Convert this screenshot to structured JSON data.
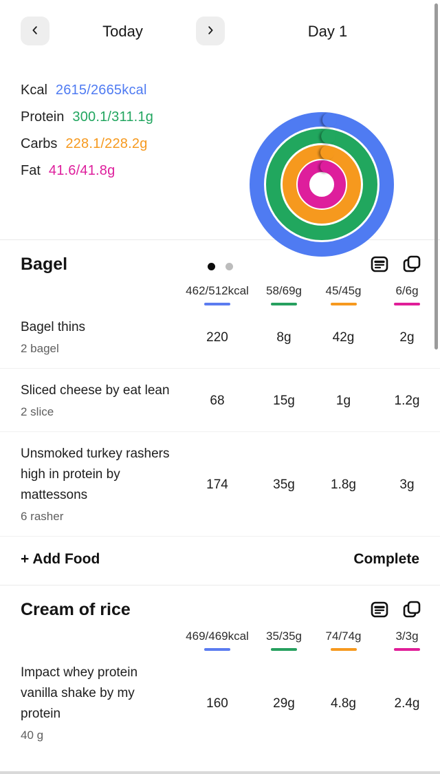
{
  "header": {
    "date_label": "Today",
    "day_label": "Day 1",
    "back_icon": "chevron-left",
    "forward_icon": "chevron-right"
  },
  "summary": {
    "macros": [
      {
        "label": "Kcal",
        "value": "2615/2665kcal",
        "color": "#4f7bf2"
      },
      {
        "label": "Protein",
        "value": "300.1/311.1g",
        "color": "#21a55f"
      },
      {
        "label": "Carbs",
        "value": "228.1/228.2g",
        "color": "#f6991e"
      },
      {
        "label": "Fat",
        "value": "41.6/41.8g",
        "color": "#de1e9c"
      }
    ],
    "rings": [
      {
        "name": "calories",
        "consumed": 2615,
        "target": 2665,
        "color": "#4f7bf2"
      },
      {
        "name": "protein",
        "consumed": 300.1,
        "target": 311.1,
        "color": "#21a75e"
      },
      {
        "name": "carbs",
        "consumed": 228.1,
        "target": 228.2,
        "color": "#f6991e"
      },
      {
        "name": "fat",
        "consumed": 41.6,
        "target": 41.8,
        "color": "#de1e9c"
      }
    ],
    "page_dots": {
      "count": 2,
      "active_index": 0
    }
  },
  "macro_colors": {
    "kcal": "#5b7cf0",
    "protein": "#27a05f",
    "carbs": "#f6991f",
    "fat": "#e01e98"
  },
  "meals": [
    {
      "title": "Bagel",
      "totals": {
        "kcal": "462/512kcal",
        "protein": "58/69g",
        "carbs": "45/45g",
        "fat": "6/6g"
      },
      "foods": [
        {
          "name": "Bagel thins",
          "serving": "2 bagel",
          "kcal": "220",
          "protein": "8g",
          "carbs": "42g",
          "fat": "2g"
        },
        {
          "name": "Sliced cheese by eat lean",
          "serving": "2 slice",
          "kcal": "68",
          "protein": "15g",
          "carbs": "1g",
          "fat": "1.2g"
        },
        {
          "name": "Unsmoked turkey rashers high in protein by mattessons",
          "serving": "6 rasher",
          "kcal": "174",
          "protein": "35g",
          "carbs": "1.8g",
          "fat": "3g"
        }
      ],
      "footer": {
        "add_label": "+ Add Food",
        "complete_label": "Complete"
      }
    },
    {
      "title": "Cream of rice",
      "totals": {
        "kcal": "469/469kcal",
        "protein": "35/35g",
        "carbs": "74/74g",
        "fat": "3/3g"
      },
      "foods": [
        {
          "name": "Impact whey protein vanilla shake by my protein",
          "serving": "40 g",
          "kcal": "160",
          "protein": "29g",
          "carbs": "4.8g",
          "fat": "2.4g"
        }
      ]
    }
  ]
}
